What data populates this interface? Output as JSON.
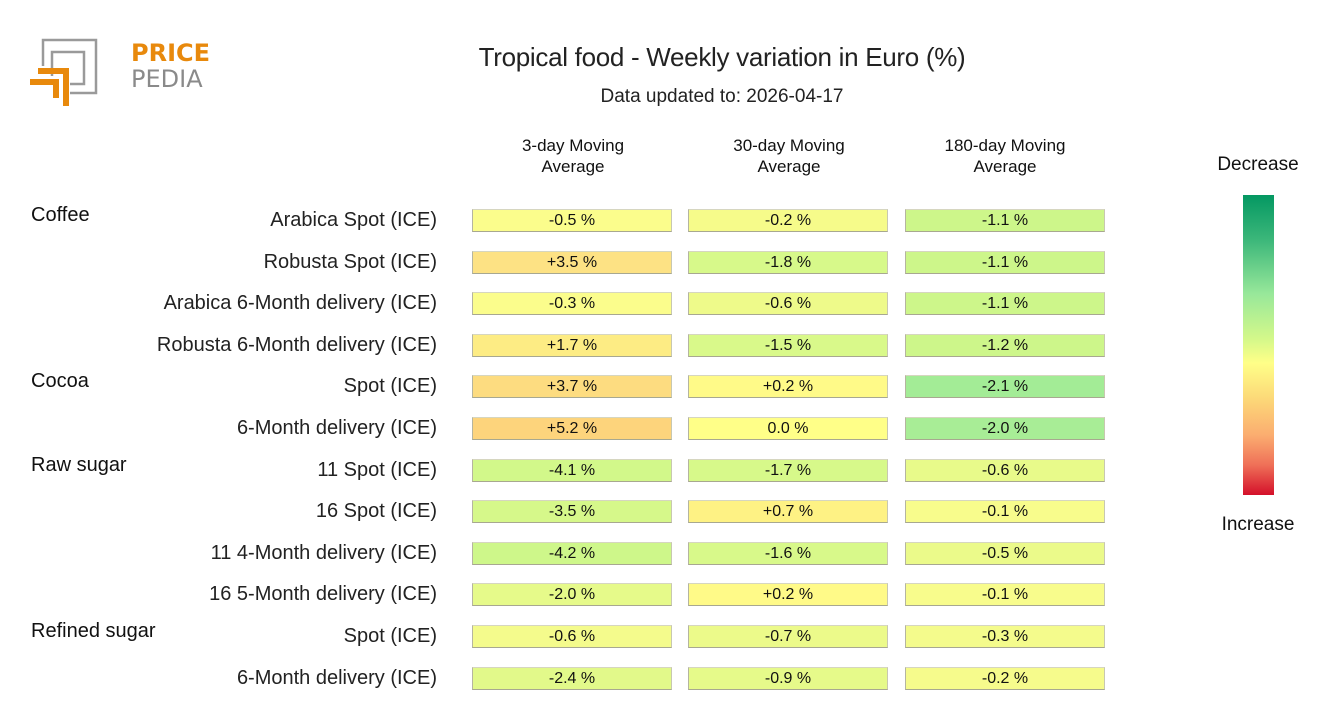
{
  "logo": {
    "line1": "PRICE",
    "line2": "PEDIA",
    "accent_color": "#e8890c",
    "gray_color": "#8a8a8a"
  },
  "header": {
    "title": "Tropical food - Weekly variation in Euro (%)",
    "subtitle": "Data updated to: 2026-04-17"
  },
  "columns": [
    {
      "line1": "3-day Moving",
      "line2": "Average"
    },
    {
      "line1": "30-day Moving",
      "line2": "Average"
    },
    {
      "line1": "180-day Moving",
      "line2": "Average"
    }
  ],
  "legend": {
    "top_label": "Decrease",
    "bottom_label": "Increase",
    "colors": [
      "#049862",
      "#98e89a",
      "#ffff88",
      "#fbad70",
      "#d4102a"
    ]
  },
  "chart_data": {
    "type": "heatmap",
    "title": "Tropical food - Weekly variation in Euro (%)",
    "subtitle": "Data updated to: 2026-04-17",
    "columns": [
      "3-day Moving Average",
      "30-day Moving Average",
      "180-day Moving Average"
    ],
    "unit": "%",
    "groups": [
      {
        "name": "Coffee",
        "rows": [
          {
            "label": "Arabica Spot (ICE)",
            "values": [
              -0.5,
              -0.2,
              -1.1
            ],
            "text": [
              "-0.5 %",
              "-0.2 %",
              "-1.1 %"
            ]
          },
          {
            "label": "Robusta Spot (ICE)",
            "values": [
              3.5,
              -1.8,
              -1.1
            ],
            "text": [
              "+3.5 %",
              "-1.8 %",
              "-1.1 %"
            ]
          },
          {
            "label": "Arabica 6-Month delivery (ICE)",
            "values": [
              -0.3,
              -0.6,
              -1.1
            ],
            "text": [
              "-0.3 %",
              "-0.6 %",
              "-1.1 %"
            ]
          },
          {
            "label": "Robusta 6-Month delivery (ICE)",
            "values": [
              1.7,
              -1.5,
              -1.2
            ],
            "text": [
              "+1.7 %",
              "-1.5 %",
              "-1.2 %"
            ]
          }
        ]
      },
      {
        "name": "Cocoa",
        "rows": [
          {
            "label": "Spot (ICE)",
            "values": [
              3.7,
              0.2,
              -2.1
            ],
            "text": [
              "+3.7 %",
              "+0.2 %",
              "-2.1 %"
            ]
          },
          {
            "label": "6-Month delivery (ICE)",
            "values": [
              5.2,
              0.0,
              -2.0
            ],
            "text": [
              "+5.2 %",
              "0.0 %",
              "-2.0 %"
            ]
          }
        ]
      },
      {
        "name": "Raw sugar",
        "rows": [
          {
            "label": "11 Spot (ICE)",
            "values": [
              -4.1,
              -1.7,
              -0.6
            ],
            "text": [
              "-4.1 %",
              "-1.7 %",
              "-0.6 %"
            ]
          },
          {
            "label": "16 Spot (ICE)",
            "values": [
              -3.5,
              0.7,
              -0.1
            ],
            "text": [
              "-3.5 %",
              "+0.7 %",
              "-0.1 %"
            ]
          },
          {
            "label": "11 4-Month delivery (ICE)",
            "values": [
              -4.2,
              -1.6,
              -0.5
            ],
            "text": [
              "-4.2 %",
              "-1.6 %",
              "-0.5 %"
            ]
          },
          {
            "label": "16 5-Month delivery (ICE)",
            "values": [
              -2.0,
              0.2,
              -0.1
            ],
            "text": [
              "-2.0 %",
              "+0.2 %",
              "-0.1 %"
            ]
          }
        ]
      },
      {
        "name": "Refined sugar",
        "rows": [
          {
            "label": "Spot (ICE)",
            "values": [
              -0.6,
              -0.7,
              -0.3
            ],
            "text": [
              "-0.6 %",
              "-0.7 %",
              "-0.3 %"
            ]
          },
          {
            "label": "6-Month delivery (ICE)",
            "values": [
              -2.4,
              -0.9,
              -0.2
            ],
            "text": [
              "-2.4 %",
              "-0.9 %",
              "-0.2 %"
            ]
          }
        ]
      }
    ],
    "cell_colors": [
      [
        "#fbfd8c",
        "#f6fb8a",
        "#cdf68a"
      ],
      [
        "#fde284",
        "#d7f98a",
        "#cdf68a"
      ],
      [
        "#fbfd8c",
        "#eefa8a",
        "#cdf68a"
      ],
      [
        "#fdec84",
        "#d9f98a",
        "#cdf68a"
      ],
      [
        "#fddc80",
        "#fffa88",
        "#a3ec96"
      ],
      [
        "#fdd47c",
        "#ffff88",
        "#a8ed96"
      ],
      [
        "#d2f88a",
        "#d7f98a",
        "#e8fa8a"
      ],
      [
        "#d6f88a",
        "#fef284",
        "#f8fc8c"
      ],
      [
        "#cef78a",
        "#d8f98a",
        "#ebfa8a"
      ],
      [
        "#e6fa8a",
        "#fffa88",
        "#f8fc8c"
      ],
      [
        "#f4fb8c",
        "#ecfa8a",
        "#f4fb8c"
      ],
      [
        "#e2f98a",
        "#e6fa8a",
        "#f6fb8c"
      ]
    ]
  }
}
